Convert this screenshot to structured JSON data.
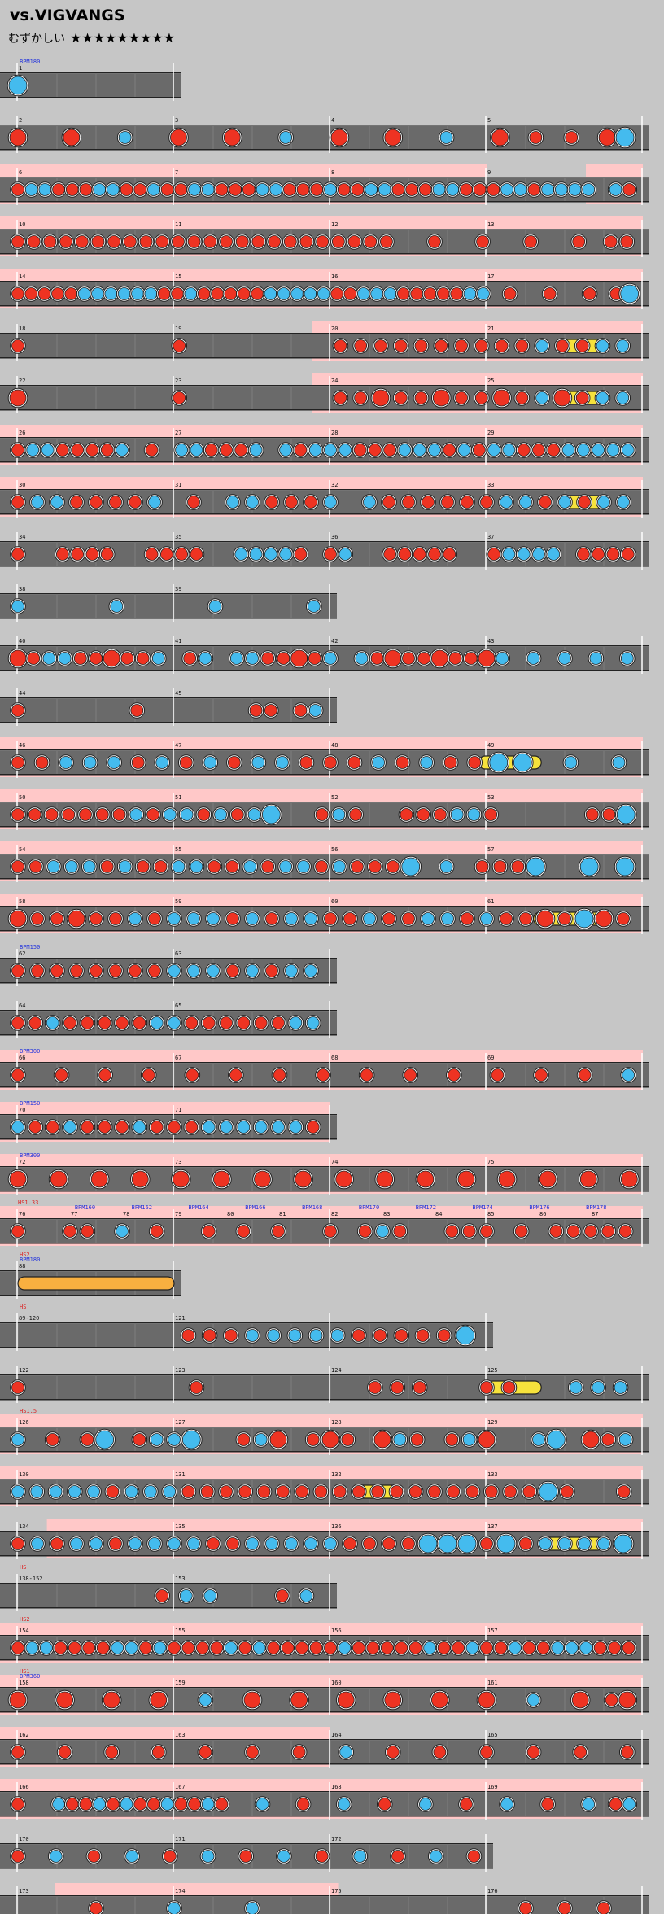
{
  "header": {
    "title": "vs.VIGVANGS",
    "difficulty_label": "むずかしい",
    "stars": "★★★★★★★★★"
  },
  "colors": {
    "background": "#c6c6c6",
    "lane": "#6a6a6a",
    "go_go": "#ffc8c8",
    "don": "#ee3322",
    "ka": "#44bbee",
    "roll": "#f6e23c",
    "balloon": "#f8b040",
    "bpm_text": "#2233dd",
    "hs_text": "#dd2222"
  },
  "rows": [
    {
      "bars": [
        "1"
      ],
      "len": 1,
      "markers": [
        "BPM180"
      ],
      "notes": "K........"
    },
    {
      "bars": [
        "2",
        "3",
        "4",
        "5"
      ],
      "len": 4,
      "notes": "D..D..k..D..D..k..D..D..k..D.D.D.DK"
    },
    {
      "bars": [
        "6",
        "7",
        "8",
        "9"
      ],
      "len": 4,
      "gogo": [
        [
          0,
          3
        ],
        [
          3.75,
          4
        ]
      ],
      "notes": "DkkDDDkkDDkDDkkDDDkkDDDkDDkkDDDkkDDDkkDkkkk.kD"
    },
    {
      "bars": [
        "10",
        "11",
        "12",
        "13"
      ],
      "len": 4,
      "gogo": [
        [
          0,
          4
        ]
      ],
      "notes": "DDDDDDDDDDDDDDDDDDDDDDDD..D..D..D..D.DD"
    },
    {
      "bars": [
        "14",
        "15",
        "16",
        "17"
      ],
      "len": 4,
      "gogo": [
        [
          0,
          4
        ]
      ],
      "notes": "DDDDDkkkkkkDDkDDDDDkkkkkDDkkkDDDDDkk.D..D..D.DK"
    },
    {
      "bars": [
        "18",
        "19",
        "20",
        "21"
      ],
      "len": 4,
      "gogo": [
        [
          2,
          4
        ]
      ],
      "notes": "D.......D.......DDDDDDDDDDkDDkk",
      "rolls": [
        [
          3.45,
          3.75,
          "roll"
        ]
      ]
    },
    {
      "bars": [
        "22",
        "23",
        "24",
        "25"
      ],
      "len": 4,
      "gogo": [
        [
          2,
          4
        ]
      ],
      "notes": "D.......D.......DDDDDDDDDDkDDkk",
      "rolls": [
        [
          3.45,
          3.75,
          "roll"
        ]
      ]
    },
    {
      "bars": [
        "26",
        "27",
        "28",
        "29"
      ],
      "len": 4,
      "gogo": [
        [
          0,
          4
        ]
      ],
      "notes": "DkkDDDDk.D.kkDDDk.kDkkkDDDkkkDkDkkDDDkkkkk"
    },
    {
      "bars": [
        "30",
        "31",
        "32",
        "33"
      ],
      "len": 4,
      "gogo": [
        [
          0,
          4
        ]
      ],
      "notes": "DkkDDDDk.D.kkDDDk.kDDDDDDkkDkDkk",
      "rolls": [
        [
          3.45,
          3.75,
          "roll"
        ]
      ]
    },
    {
      "bars": [
        "34",
        "35",
        "36",
        "37"
      ],
      "len": 4,
      "notes": "D..DDDD..DDDD..kkkkD.Dk..DDDDD..Dkkkk.DDDD"
    },
    {
      "bars": [
        "38",
        "39"
      ],
      "len": 2,
      "notes": "k.....k.....k.....k"
    },
    {
      "bars": [
        "40",
        "41",
        "42",
        "43"
      ],
      "len": 4,
      "notes": "DDkkDDDDDk.Dk.kkDDDDk.kDDDDDDDDk.k.k.k.k"
    },
    {
      "bars": [
        "44",
        "45"
      ],
      "len": 2,
      "notes": "D.......D.......DD.Dk"
    },
    {
      "bars": [
        "46",
        "47",
        "48",
        "49"
      ],
      "len": 4,
      "gogo": [
        [
          0,
          4
        ]
      ],
      "notes": "DDkkkDkDkDkkDDDkDkDDKK.k.k",
      "rolls": [
        [
          2.95,
          3.35,
          "roll"
        ]
      ]
    },
    {
      "bars": [
        "50",
        "51",
        "52",
        "53"
      ],
      "len": 4,
      "gogo": [
        [
          0,
          4
        ]
      ],
      "notes": "DDDDDDDkDkkDkDkK..DkD..DDDkkD.....DDK"
    },
    {
      "bars": [
        "54",
        "55",
        "56",
        "57"
      ],
      "len": 4,
      "gogo": [
        [
          0,
          4
        ]
      ],
      "notes": "DDkkkDkDDkkDDkDkkDkDDDK.k.DDDK..K.K"
    },
    {
      "bars": [
        "58",
        "59",
        "60",
        "61"
      ],
      "len": 4,
      "gogo": [
        [
          0,
          4
        ]
      ],
      "notes": "DDDDDDkDkkkDkDkkDDkDDkkDkDDDDKDD",
      "rolls": [
        [
          3.3,
          3.75,
          "roll"
        ]
      ]
    },
    {
      "bars": [
        "62",
        "63"
      ],
      "len": 2,
      "markers": [
        "BPM150"
      ],
      "notes": "DDDDDDDDkkkDkDkk"
    },
    {
      "bars": [
        "64",
        "65"
      ],
      "len": 2,
      "notes": "DDkDDDDDkkDDDDDDkk"
    },
    {
      "bars": [
        "66",
        "67",
        "68",
        "69"
      ],
      "len": 4,
      "gogo": [
        [
          0,
          4
        ]
      ],
      "markers": [
        "BPM300"
      ],
      "notes": "D..D..D..D..D..D..D..D..D..D..D..D..D..D..k"
    },
    {
      "bars": [
        "70",
        "71"
      ],
      "len": 2,
      "gogo": [
        [
          0,
          2
        ]
      ],
      "markers": [
        "BPM150"
      ],
      "notes": "kDDkDDDkDDDkkkkkkD"
    },
    {
      "bars": [
        "72",
        "73",
        "74",
        "75"
      ],
      "len": 4,
      "gogo": [
        [
          0,
          4
        ]
      ],
      "markers": [
        "BPM300"
      ],
      "notes": "D..D..D..D..D..D..D..D..D..D..D..D..D..D..D..D"
    },
    {
      "bars": [
        "76",
        "77",
        "78",
        "79",
        "80",
        "81",
        "82",
        "83",
        "84",
        "85",
        "86",
        "87"
      ],
      "len": 4,
      "gogo": [
        [
          0,
          4
        ]
      ],
      "markers": [
        "HS1.33",
        "BPM160",
        "BPM162",
        "BPM164",
        "BPM166",
        "BPM168",
        "BPM170",
        "BPM172",
        "BPM174",
        "BPM176",
        "BPM178"
      ],
      "notes": "D..DD.k.D..D.D.D..D.DkD..DDD.D.DDDDD"
    },
    {
      "bars": [
        "88"
      ],
      "len": 1,
      "markers": [
        "HS2",
        "BPM180"
      ],
      "notes": "",
      "rolls": [
        [
          0.0,
          1.0,
          "balloon"
        ]
      ]
    },
    {
      "bars": [
        "89-120",
        "121"
      ],
      "len": 3,
      "markers": [
        "HS"
      ],
      "notes": "........DDDkkkkkDDDDDK"
    },
    {
      "bars": [
        "122",
        "123",
        "124",
        "125"
      ],
      "len": 4,
      "notes": "D.......D.......DDD..DD..kkk",
      "rolls": [
        [
          3.0,
          3.35,
          "roll"
        ]
      ]
    },
    {
      "bars": [
        "126",
        "127",
        "128",
        "129"
      ],
      "len": 4,
      "gogo": [
        [
          0,
          4
        ]
      ],
      "markers": [
        "HS1.5"
      ],
      "notes": "k.D.DK.DkkK..DkD.DDD.DkD.DkD..kK.DDk"
    },
    {
      "bars": [
        "130",
        "131",
        "132",
        "133"
      ],
      "len": 4,
      "gogo": [
        [
          0,
          4
        ]
      ],
      "notes": "kkkkkDkkkDDDDDDDDDDDDDDDDDDDKD..D",
      "rolls": [
        [
          2.15,
          2.45,
          "roll"
        ]
      ]
    },
    {
      "bars": [
        "134",
        "135",
        "136",
        "137"
      ],
      "len": 4,
      "gogo": [
        [
          0.3,
          4
        ]
      ],
      "notes": "DkDkkDkkkkDDkkkkkDDDDKKKDKDkkkkK",
      "rolls": [
        [
          3.35,
          3.75,
          "roll"
        ]
      ]
    },
    {
      "bars": [
        "138-152",
        "153"
      ],
      "len": 2,
      "markers": [
        "HS"
      ],
      "notes": "......Dkk..Dk"
    },
    {
      "bars": [
        "154",
        "155",
        "156",
        "157"
      ],
      "len": 4,
      "gogo": [
        [
          0,
          4
        ]
      ],
      "markers": [
        "HS2"
      ],
      "notes": "DkkDDDDkkDkDDDDkDkDDDDDkDDDDDkDDkDDkDDkkkDDD"
    },
    {
      "bars": [
        "158",
        "159",
        "160",
        "161"
      ],
      "len": 4,
      "gogo": [
        [
          0,
          4
        ]
      ],
      "markers": [
        "HS1",
        "BPM360"
      ],
      "notes": "D..D..D..D..k..D..D..D..D..D..D..k..D.DD"
    },
    {
      "bars": [
        "162",
        "163",
        "164",
        "165"
      ],
      "len": 4,
      "gogo": [
        [
          0,
          2
        ]
      ],
      "notes": "D..D..D..D..D..D..D..k..D..D..D..D..D..D"
    },
    {
      "bars": [
        "166",
        "167",
        "168",
        "169"
      ],
      "len": 4,
      "gogo": [
        [
          0,
          4
        ]
      ],
      "notes": "D..kDDkDkDDkDDkD..k..D..k..D..k..D..k..D..k.Dk"
    },
    {
      "bars": [
        "170",
        "171",
        "172"
      ],
      "len": 3,
      "notes": "D..k..D..k..D..k..D..k..D..k..D..k..D"
    },
    {
      "bars": [
        "173",
        "174",
        "175",
        "176"
      ],
      "len": 4,
      "gogo": [
        [
          0.35,
          2.05
        ]
      ],
      "notes": "..D.k.k......DDD"
    }
  ]
}
